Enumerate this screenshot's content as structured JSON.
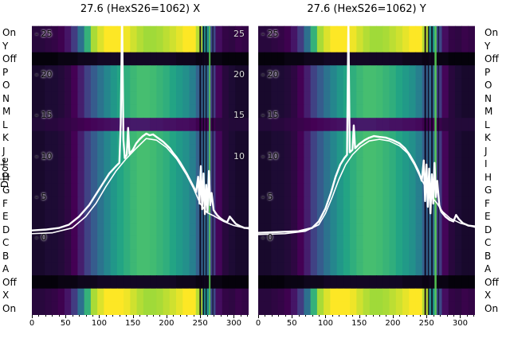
{
  "figure": {
    "background": "#ffffff",
    "dipole_axis_label": "Dipole",
    "row_labels": [
      "On",
      "Y",
      "Off",
      "P",
      "O",
      "N",
      "M",
      "L",
      "K",
      "J",
      "I",
      "H",
      "G",
      "F",
      "E",
      "D",
      "C",
      "B",
      "A",
      "Off",
      "X",
      "On"
    ],
    "row_profiles": [
      "bright",
      "bright",
      "dark",
      "standard",
      "standard",
      "standard",
      "standard",
      "purple",
      "standard",
      "standard",
      "standard",
      "standard",
      "standard",
      "standard",
      "standard",
      "standard",
      "standard",
      "standard",
      "standard",
      "dark",
      "bright",
      "bright"
    ],
    "x_tick_labels": [
      0,
      50,
      100,
      150,
      200,
      250,
      300
    ],
    "minor_tick_step": 10
  },
  "profiles": {
    "standard": [
      0.05,
      0.05,
      0.06,
      0.06,
      0.07,
      0.09,
      0.13,
      0.2,
      0.3,
      0.38,
      0.46,
      0.52,
      0.57,
      0.61,
      0.64,
      0.67,
      0.69,
      0.69,
      0.68,
      0.66,
      0.64,
      0.61,
      0.58,
      0.55,
      0.5,
      0.4,
      0.42,
      0.28,
      0.14,
      0.08,
      0.06,
      0.05,
      0.05
    ],
    "bright": [
      0.08,
      0.08,
      0.09,
      0.1,
      0.12,
      0.18,
      0.28,
      0.45,
      0.65,
      0.82,
      0.93,
      1,
      1,
      1,
      0.97,
      0.9,
      0.84,
      0.8,
      0.8,
      0.82,
      0.86,
      0.9,
      0.95,
      1,
      1,
      0.85,
      0.55,
      0.32,
      0.16,
      0.1,
      0.09,
      0.11,
      0.1
    ],
    "dark": [
      0.01,
      0.01,
      0.01,
      0.01,
      0.02,
      0.02,
      0.02,
      0.03,
      0.03,
      0.03,
      0.04,
      0.04,
      0.04,
      0.04,
      0.04,
      0.04,
      0.04,
      0.04,
      0.04,
      0.04,
      0.04,
      0.04,
      0.03,
      0.03,
      0.03,
      0.02,
      0.03,
      0.02,
      0.02,
      0.01,
      0.01,
      0.01,
      0.01
    ],
    "purple": [
      0.07,
      0.07,
      0.08,
      0.08,
      0.09,
      0.1,
      0.11,
      0.12,
      0.13,
      0.14,
      0.15,
      0.16,
      0.17,
      0.18,
      0.18,
      0.19,
      0.19,
      0.19,
      0.18,
      0.18,
      0.17,
      0.17,
      0.16,
      0.16,
      0.15,
      0.12,
      0.14,
      0.11,
      0.09,
      0.08,
      0.07,
      0.07,
      0.07
    ]
  },
  "colormap": [
    {
      "t": 0,
      "c": "#000003"
    },
    {
      "t": 0.06,
      "c": "#1d0b34"
    },
    {
      "t": 0.13,
      "c": "#440154"
    },
    {
      "t": 0.25,
      "c": "#46327e"
    },
    {
      "t": 0.38,
      "c": "#365c8d"
    },
    {
      "t": 0.5,
      "c": "#277f8e"
    },
    {
      "t": 0.6,
      "c": "#1fa187"
    },
    {
      "t": 0.7,
      "c": "#4ac16d"
    },
    {
      "t": 0.8,
      "c": "#a0da39"
    },
    {
      "t": 1,
      "c": "#fde725"
    }
  ],
  "chart_data": [
    {
      "type": "heatmap",
      "title": "27.6 (HexS26=1062) X",
      "x_range": [
        0,
        322
      ],
      "value_range": [
        -9.5,
        26
      ],
      "inner_left_ticks": [
        25,
        20,
        15,
        10,
        5,
        0
      ],
      "inner_right_ticks": [
        25,
        20,
        15,
        10
      ],
      "vlines": [
        {
          "x": 249,
          "w": 2,
          "color": "#0d0118",
          "alpha": 0.9
        },
        {
          "x": 254,
          "w": 1.5,
          "color": "#0d0118",
          "alpha": 0.85
        },
        {
          "x": 258,
          "w": 1.5,
          "color": "#0d0118",
          "alpha": 0.8
        },
        {
          "x": 263,
          "w": 2,
          "color": "#59d354",
          "alpha": 0.85
        },
        {
          "x": 268,
          "w": 1.5,
          "color": "#0d0118",
          "alpha": 0.6
        }
      ],
      "curves": [
        {
          "name": "main-trace",
          "width": 2.4,
          "points": [
            [
              0,
              0.9
            ],
            [
              20,
              1.0
            ],
            [
              40,
              1.2
            ],
            [
              55,
              1.6
            ],
            [
              70,
              2.6
            ],
            [
              85,
              4.0
            ],
            [
              95,
              5.3
            ],
            [
              105,
              6.6
            ],
            [
              115,
              7.9
            ],
            [
              125,
              8.8
            ],
            [
              130,
              9.2
            ],
            [
              132,
              14.0
            ],
            [
              134,
              27.5
            ],
            [
              136,
              12.0
            ],
            [
              138,
              9.8
            ],
            [
              141,
              10.2
            ],
            [
              143,
              13.5
            ],
            [
              145,
              10.3
            ],
            [
              150,
              10.8
            ],
            [
              155,
              11.6
            ],
            [
              160,
              12.1
            ],
            [
              165,
              12.5
            ],
            [
              170,
              12.8
            ],
            [
              175,
              12.6
            ],
            [
              180,
              12.7
            ],
            [
              185,
              12.4
            ],
            [
              190,
              12.1
            ],
            [
              195,
              11.8
            ],
            [
              200,
              11.4
            ],
            [
              205,
              11.0
            ],
            [
              210,
              10.4
            ],
            [
              215,
              9.9
            ],
            [
              220,
              9.3
            ],
            [
              225,
              8.6
            ],
            [
              230,
              7.9
            ],
            [
              235,
              7.1
            ],
            [
              240,
              6.3
            ],
            [
              244,
              5.6
            ],
            [
              247,
              7.5
            ],
            [
              249,
              4.2
            ],
            [
              251,
              8.8
            ],
            [
              253,
              3.5
            ],
            [
              255,
              7.9
            ],
            [
              257,
              2.9
            ],
            [
              259,
              6.5
            ],
            [
              261,
              3.2
            ],
            [
              263,
              8.2
            ],
            [
              265,
              4.0
            ],
            [
              267,
              5.5
            ],
            [
              270,
              3.4
            ],
            [
              275,
              2.8
            ],
            [
              280,
              2.4
            ],
            [
              285,
              2.1
            ],
            [
              290,
              1.9
            ],
            [
              294,
              2.6
            ],
            [
              298,
              2.2
            ],
            [
              303,
              1.7
            ],
            [
              310,
              1.4
            ],
            [
              316,
              1.2
            ],
            [
              322,
              1.2
            ]
          ]
        },
        {
          "name": "secondary-trace",
          "width": 1.6,
          "points": [
            [
              0,
              0.5
            ],
            [
              30,
              0.6
            ],
            [
              60,
              1.2
            ],
            [
              80,
              2.6
            ],
            [
              95,
              4.2
            ],
            [
              110,
              6.3
            ],
            [
              125,
              8.2
            ],
            [
              140,
              9.7
            ],
            [
              155,
              11.0
            ],
            [
              170,
              12.2
            ],
            [
              185,
              12.0
            ],
            [
              200,
              11.1
            ],
            [
              215,
              9.7
            ],
            [
              230,
              7.7
            ],
            [
              240,
              6.1
            ],
            [
              250,
              4.2
            ],
            [
              260,
              3.1
            ],
            [
              270,
              2.7
            ],
            [
              285,
              2.0
            ],
            [
              300,
              1.5
            ],
            [
              322,
              1.1
            ]
          ]
        }
      ]
    },
    {
      "type": "heatmap",
      "title": "27.6 (HexS26=1062) Y",
      "x_range": [
        0,
        322
      ],
      "value_range": [
        -9.5,
        26
      ],
      "inner_left_ticks": [
        25,
        20,
        15,
        10,
        5,
        0
      ],
      "inner_right_ticks": [],
      "vlines": [
        {
          "x": 247,
          "w": 2,
          "color": "#0d0118",
          "alpha": 0.9
        },
        {
          "x": 252,
          "w": 1.5,
          "color": "#0d0118",
          "alpha": 0.85
        },
        {
          "x": 257,
          "w": 2,
          "color": "#0d0118",
          "alpha": 0.8
        },
        {
          "x": 262,
          "w": 2.5,
          "color": "#59d354",
          "alpha": 0.9
        },
        {
          "x": 267,
          "w": 1.5,
          "color": "#0d0118",
          "alpha": 0.6
        }
      ],
      "curves": [
        {
          "name": "main-trace",
          "width": 2.4,
          "points": [
            [
              0,
              0.6
            ],
            [
              30,
              0.7
            ],
            [
              60,
              0.8
            ],
            [
              80,
              1.2
            ],
            [
              90,
              2.0
            ],
            [
              100,
              3.6
            ],
            [
              108,
              5.5
            ],
            [
              115,
              7.5
            ],
            [
              122,
              9.0
            ],
            [
              128,
              9.8
            ],
            [
              132,
              10.2
            ],
            [
              134,
              26.5
            ],
            [
              136,
              10.5
            ],
            [
              140,
              10.8
            ],
            [
              142,
              13.8
            ],
            [
              144,
              11.0
            ],
            [
              150,
              11.5
            ],
            [
              158,
              12.0
            ],
            [
              165,
              12.3
            ],
            [
              172,
              12.5
            ],
            [
              180,
              12.4
            ],
            [
              190,
              12.3
            ],
            [
              200,
              12.0
            ],
            [
              210,
              11.6
            ],
            [
              218,
              11.0
            ],
            [
              225,
              10.2
            ],
            [
              232,
              9.2
            ],
            [
              238,
              8.2
            ],
            [
              243,
              7.0
            ],
            [
              246,
              9.5
            ],
            [
              248,
              4.5
            ],
            [
              250,
              9.0
            ],
            [
              252,
              3.8
            ],
            [
              254,
              8.5
            ],
            [
              256,
              3.0
            ],
            [
              258,
              7.8
            ],
            [
              260,
              4.2
            ],
            [
              262,
              9.2
            ],
            [
              264,
              5.0
            ],
            [
              266,
              7.0
            ],
            [
              269,
              4.0
            ],
            [
              272,
              3.2
            ],
            [
              278,
              2.6
            ],
            [
              284,
              2.2
            ],
            [
              290,
              2.0
            ],
            [
              294,
              2.8
            ],
            [
              298,
              2.3
            ],
            [
              304,
              1.8
            ],
            [
              312,
              1.5
            ],
            [
              322,
              1.4
            ]
          ]
        },
        {
          "name": "secondary-trace",
          "width": 1.6,
          "points": [
            [
              0,
              0.4
            ],
            [
              40,
              0.5
            ],
            [
              70,
              0.8
            ],
            [
              90,
              1.6
            ],
            [
              100,
              3.0
            ],
            [
              110,
              5.0
            ],
            [
              120,
              7.2
            ],
            [
              130,
              9.0
            ],
            [
              140,
              10.2
            ],
            [
              152,
              11.2
            ],
            [
              165,
              11.9
            ],
            [
              180,
              12.1
            ],
            [
              195,
              11.9
            ],
            [
              210,
              11.3
            ],
            [
              222,
              10.4
            ],
            [
              232,
              9.0
            ],
            [
              240,
              7.6
            ],
            [
              250,
              6.0
            ],
            [
              258,
              5.0
            ],
            [
              266,
              4.2
            ],
            [
              274,
              3.2
            ],
            [
              285,
              2.4
            ],
            [
              300,
              1.8
            ],
            [
              322,
              1.3
            ]
          ]
        }
      ]
    }
  ]
}
